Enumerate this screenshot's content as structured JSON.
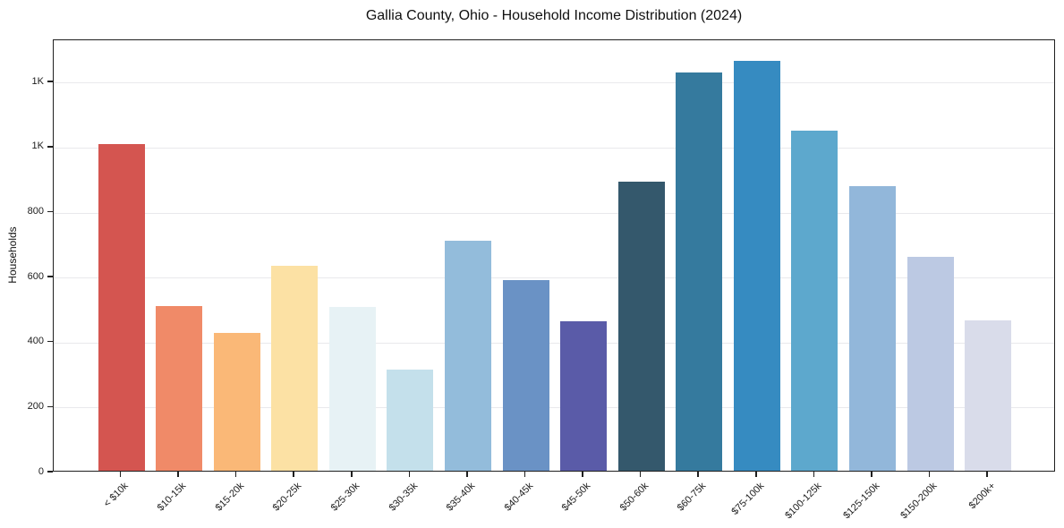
{
  "chart_data": {
    "type": "bar",
    "title": "Gallia County, Ohio - Household Income Distribution (2024)",
    "xlabel": "",
    "ylabel": "Households",
    "categories": [
      "< $10k",
      "$10-15k",
      "$15-20k",
      "$20-25k",
      "$25-30k",
      "$30-35k",
      "$35-40k",
      "$40-45k",
      "$45-50k",
      "$50-60k",
      "$60-75k",
      "$75-100k",
      "$100-125k",
      "$125-150k",
      "$150-200k",
      "$200k+"
    ],
    "values": [
      1005,
      508,
      423,
      632,
      505,
      310,
      709,
      588,
      461,
      890,
      1226,
      1260,
      1047,
      876,
      659,
      464
    ],
    "bar_colors": [
      "#d45550",
      "#f08a68",
      "#fab877",
      "#fce1a4",
      "#e7f2f5",
      "#c4e0eb",
      "#93bcdb",
      "#6a92c5",
      "#5a5ba8",
      "#34586c",
      "#357a9e",
      "#368bc1",
      "#5da8cd",
      "#92b7da",
      "#bcc9e3",
      "#d9dcea"
    ],
    "ylim": [
      0,
      1330
    ],
    "yticks": [
      {
        "value": 0,
        "label": "0"
      },
      {
        "value": 200,
        "label": "200"
      },
      {
        "value": 400,
        "label": "400"
      },
      {
        "value": 600,
        "label": "600"
      },
      {
        "value": 800,
        "label": "800"
      },
      {
        "value": 1000,
        "label": "1K"
      },
      {
        "value": 1200,
        "label": "1K"
      }
    ],
    "grid": "horizontal",
    "legend": "none"
  }
}
